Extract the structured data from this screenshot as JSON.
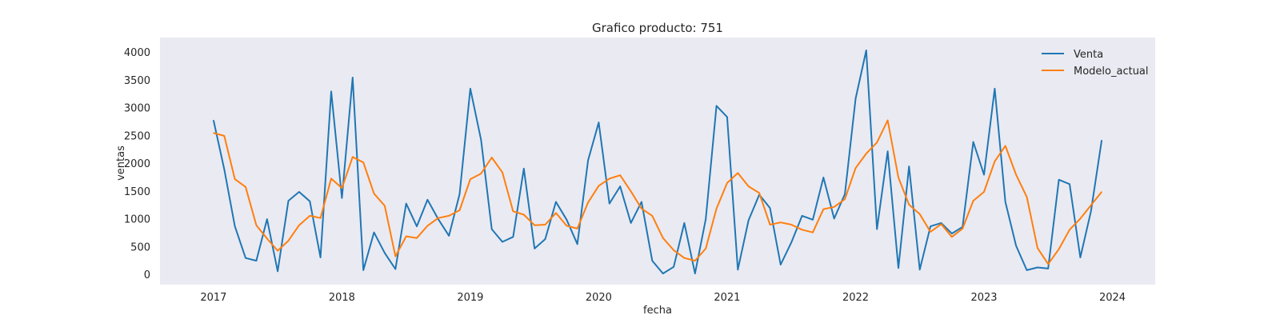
{
  "chart_data": {
    "type": "line",
    "title": "Grafico producto: 751",
    "xlabel": "fecha",
    "ylabel": "ventas",
    "x_start": "2017-01",
    "x_ticks": [
      "2017",
      "2018",
      "2019",
      "2020",
      "2021",
      "2022",
      "2023",
      "2024"
    ],
    "xlim": [
      "2016-08",
      "2024-05"
    ],
    "y_ticks": [
      0,
      500,
      1000,
      1500,
      2000,
      2500,
      3000,
      3500,
      4000
    ],
    "ylim": [
      -180,
      4270
    ],
    "grid": false,
    "legend_position": "top-right",
    "series": [
      {
        "name": "Venta",
        "color": "#1f77b4",
        "values": [
          2780,
          1900,
          870,
          300,
          250,
          1000,
          60,
          1330,
          1490,
          1320,
          310,
          3300,
          1380,
          3550,
          80,
          760,
          390,
          100,
          1280,
          870,
          1350,
          1000,
          700,
          1450,
          3350,
          2430,
          820,
          590,
          680,
          1910,
          470,
          640,
          1310,
          990,
          550,
          2060,
          2740,
          1280,
          1590,
          930,
          1310,
          250,
          20,
          140,
          930,
          20,
          1000,
          3040,
          2840,
          90,
          980,
          1440,
          1200,
          180,
          580,
          1060,
          990,
          1750,
          1010,
          1450,
          3170,
          4040,
          820,
          2220,
          120,
          1950,
          90,
          870,
          930,
          740,
          860,
          2390,
          1800,
          3350,
          1310,
          520,
          80,
          130,
          110,
          1710,
          1630,
          310,
          1140,
          2420
        ]
      },
      {
        "name": "Modelo_actual",
        "color": "#ff7f0e",
        "values": [
          2550,
          2500,
          1720,
          1580,
          890,
          650,
          430,
          610,
          890,
          1060,
          1020,
          1730,
          1560,
          2120,
          2020,
          1460,
          1240,
          330,
          690,
          660,
          880,
          1020,
          1060,
          1160,
          1720,
          1820,
          2110,
          1840,
          1140,
          1080,
          890,
          900,
          1110,
          880,
          830,
          1300,
          1600,
          1730,
          1790,
          1500,
          1190,
          1060,
          660,
          440,
          300,
          250,
          470,
          1190,
          1650,
          1830,
          1590,
          1470,
          900,
          940,
          900,
          810,
          760,
          1180,
          1220,
          1360,
          1920,
          2180,
          2380,
          2780,
          1750,
          1260,
          1090,
          770,
          910,
          680,
          830,
          1330,
          1490,
          2040,
          2320,
          1800,
          1400,
          480,
          190,
          460,
          810,
          1010,
          1250,
          1490
        ]
      }
    ]
  }
}
